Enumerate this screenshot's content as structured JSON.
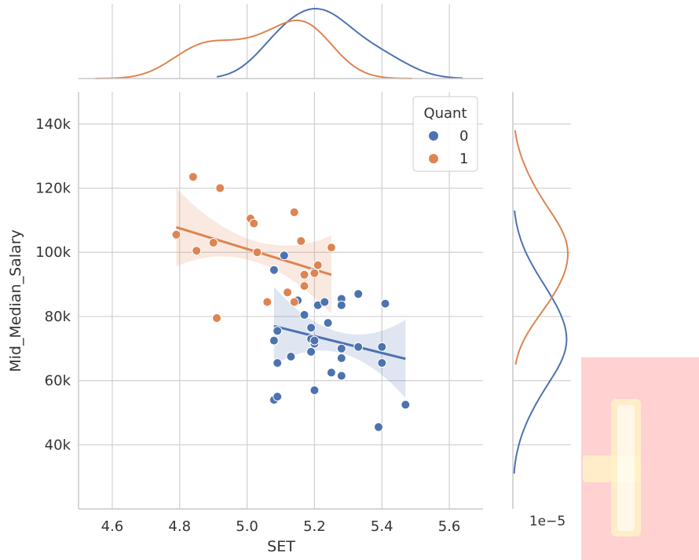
{
  "chart_data": {
    "type": "scatter",
    "xlabel": "SET",
    "ylabel": "Mid_Median_Salary",
    "xlim": [
      4.5,
      5.7
    ],
    "ylim": [
      20000,
      150000
    ],
    "xticks": [
      "4.6",
      "4.8",
      "5.0",
      "5.2",
      "5.4",
      "5.6"
    ],
    "yticks": [
      "40k",
      "60k",
      "80k",
      "100k",
      "120k",
      "140k"
    ],
    "grid": true,
    "legend": {
      "title": "Quant",
      "placement": "top-right"
    },
    "series": [
      {
        "name": "0",
        "color": "#4c72b0",
        "points": [
          [
            5.08,
            94500
          ],
          [
            5.11,
            99000
          ],
          [
            5.2,
            94000
          ],
          [
            5.15,
            85000
          ],
          [
            5.21,
            83500
          ],
          [
            5.23,
            84500
          ],
          [
            5.28,
            85500
          ],
          [
            5.28,
            83500
          ],
          [
            5.33,
            87000
          ],
          [
            5.41,
            84000
          ],
          [
            5.17,
            80500
          ],
          [
            5.09,
            75500
          ],
          [
            5.08,
            72500
          ],
          [
            5.19,
            76500
          ],
          [
            5.24,
            78000
          ],
          [
            5.19,
            73000
          ],
          [
            5.2,
            71500
          ],
          [
            5.2,
            72500
          ],
          [
            5.28,
            70000
          ],
          [
            5.33,
            70500
          ],
          [
            5.4,
            70500
          ],
          [
            5.19,
            69000
          ],
          [
            5.09,
            65500
          ],
          [
            5.13,
            67500
          ],
          [
            5.28,
            67000
          ],
          [
            5.4,
            65500
          ],
          [
            5.25,
            62500
          ],
          [
            5.28,
            61500
          ],
          [
            5.2,
            57000
          ],
          [
            5.08,
            54000
          ],
          [
            5.09,
            55000
          ],
          [
            5.47,
            52500
          ],
          [
            5.39,
            45500
          ]
        ],
        "regression_line": [
          [
            5.08,
            77000
          ],
          [
            5.47,
            66800
          ]
        ]
      },
      {
        "name": "1",
        "color": "#dd8452",
        "points": [
          [
            4.84,
            123500
          ],
          [
            4.92,
            120000
          ],
          [
            4.79,
            105500
          ],
          [
            4.85,
            100500
          ],
          [
            4.9,
            103000
          ],
          [
            5.01,
            110500
          ],
          [
            5.02,
            109000
          ],
          [
            5.03,
            100000
          ],
          [
            5.14,
            112500
          ],
          [
            5.16,
            103500
          ],
          [
            5.25,
            101500
          ],
          [
            5.21,
            96000
          ],
          [
            5.2,
            93500
          ],
          [
            5.17,
            93000
          ],
          [
            5.12,
            87500
          ],
          [
            5.17,
            89500
          ],
          [
            5.14,
            84500
          ],
          [
            5.06,
            84500
          ],
          [
            4.91,
            79500
          ]
        ],
        "regression_line": [
          [
            4.79,
            107800
          ],
          [
            5.25,
            93000
          ]
        ]
      }
    ],
    "marginal_x_density": {
      "series_0": {
        "range": [
          4.91,
          5.64
        ],
        "peak": 5.21
      },
      "series_1": {
        "range": [
          4.55,
          5.49
        ],
        "peak": 5.15
      }
    },
    "marginal_y_density": {
      "series_0": {
        "range": [
          31000,
          113000
        ],
        "peak": 70000
      },
      "series_1": {
        "range": [
          65000,
          138000
        ],
        "peak": 100000
      },
      "offset_label": "1e−5"
    }
  }
}
